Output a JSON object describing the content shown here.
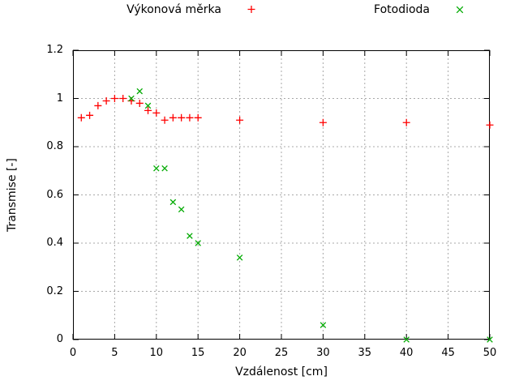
{
  "chart_data": {
    "type": "scatter",
    "title": "",
    "xlabel": "Vzdálenost [cm]",
    "ylabel": "Transmise [-]",
    "xlim": [
      0,
      50
    ],
    "ylim": [
      0,
      1.2
    ],
    "x_ticks": [
      0,
      5,
      10,
      15,
      20,
      25,
      30,
      35,
      40,
      45,
      50
    ],
    "y_ticks": [
      0,
      0.2,
      0.4,
      0.6,
      0.8,
      1,
      1.2
    ],
    "grid": true,
    "legend_position": "top-center",
    "series": [
      {
        "name": "Výkonová měrka",
        "marker": "plus",
        "color": "#ff0000",
        "points": [
          [
            1,
            0.92
          ],
          [
            2,
            0.93
          ],
          [
            3,
            0.97
          ],
          [
            4,
            0.99
          ],
          [
            5,
            1.0
          ],
          [
            6,
            1.0
          ],
          [
            7,
            0.99
          ],
          [
            8,
            0.98
          ],
          [
            9,
            0.95
          ],
          [
            10,
            0.94
          ],
          [
            11,
            0.91
          ],
          [
            12,
            0.92
          ],
          [
            13,
            0.92
          ],
          [
            14,
            0.92
          ],
          [
            15,
            0.92
          ],
          [
            20,
            0.91
          ],
          [
            30,
            0.9
          ],
          [
            40,
            0.9
          ],
          [
            50,
            0.89
          ]
        ]
      },
      {
        "name": "Fotodioda",
        "marker": "cross",
        "color": "#00aa00",
        "points": [
          [
            7,
            1.0
          ],
          [
            8,
            1.03
          ],
          [
            9,
            0.97
          ],
          [
            10,
            0.71
          ],
          [
            11,
            0.71
          ],
          [
            12,
            0.57
          ],
          [
            13,
            0.54
          ],
          [
            14,
            0.43
          ],
          [
            15,
            0.4
          ],
          [
            20,
            0.34
          ],
          [
            30,
            0.06
          ],
          [
            40,
            0.0
          ],
          [
            50,
            0.0
          ]
        ]
      }
    ]
  },
  "colors": {
    "marker_red": "#ff0000",
    "marker_green": "#00aa00",
    "grid": "#a8a8a8",
    "axis": "#000000",
    "background": "#ffffff"
  }
}
